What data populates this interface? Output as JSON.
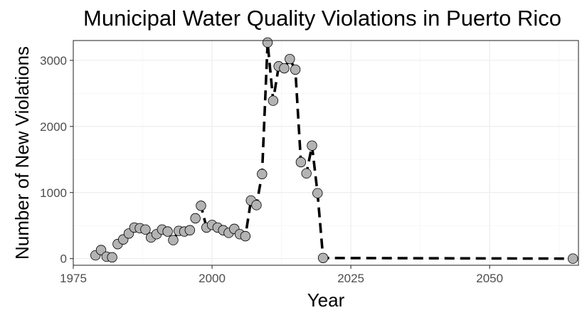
{
  "chart_data": {
    "type": "line",
    "title": "Municipal Water Quality Violations in Puerto Rico",
    "xlabel": "Year",
    "ylabel": "Number of New Violations",
    "xlim": [
      1975,
      2066
    ],
    "ylim": [
      -100,
      3300
    ],
    "x_ticks": [
      1975,
      2000,
      2025,
      2050
    ],
    "y_ticks": [
      0,
      1000,
      2000,
      3000
    ],
    "grid": true,
    "legend": "none",
    "marker_color": "#b3b3b3",
    "line_color": "#000000",
    "line_style": "dashed",
    "series": [
      {
        "x": [
          1979,
          1980,
          1981,
          1982,
          1983,
          1984,
          1985,
          1986,
          1987,
          1988,
          1989,
          1990,
          1991,
          1992,
          1993,
          1994,
          1995,
          1996,
          1997,
          1998,
          1999,
          2000,
          2001,
          2002,
          2003,
          2004,
          2005,
          2006,
          2007,
          2008,
          2009,
          2010,
          2011,
          2012,
          2013,
          2014,
          2015,
          2016,
          2017,
          2018,
          2019,
          2020,
          2065
        ],
        "y": [
          50,
          130,
          30,
          20,
          220,
          290,
          380,
          470,
          460,
          440,
          320,
          370,
          440,
          410,
          280,
          420,
          410,
          430,
          610,
          800,
          470,
          510,
          470,
          430,
          390,
          450,
          370,
          340,
          880,
          810,
          1280,
          3270,
          2390,
          2910,
          2880,
          3020,
          2860,
          1460,
          1290,
          1710,
          990,
          10,
          0
        ]
      }
    ]
  }
}
